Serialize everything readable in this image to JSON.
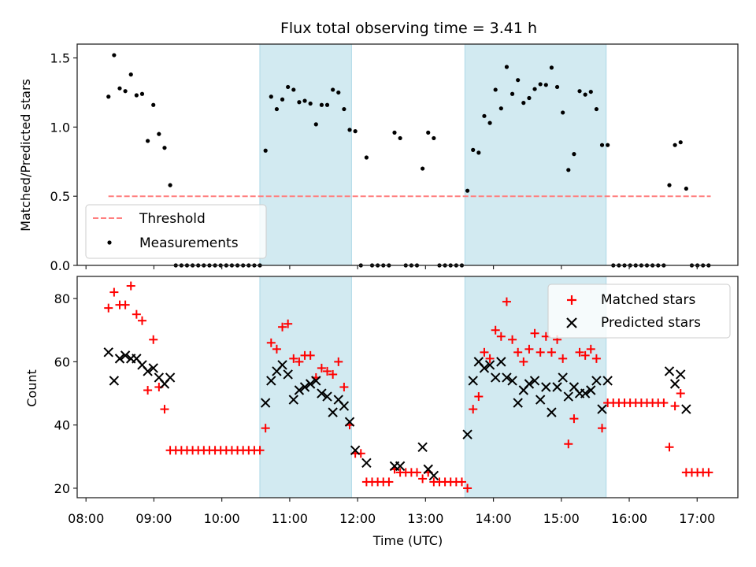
{
  "chart_data": [
    {
      "type": "scatter",
      "panel": "top",
      "title": "Flux total observing time = 3.41 h",
      "xlabel": "",
      "ylabel": "Matched/Predicted stars",
      "ylim": [
        0,
        1.6
      ],
      "yticks": [
        0.0,
        0.5,
        1.0,
        1.5
      ],
      "ytick_labels": [
        "0.0",
        "0.5",
        "1.0",
        "1.5"
      ],
      "threshold": {
        "value": 0.5,
        "x_range_hours": [
          8.33,
          17.2
        ],
        "label": "Threshold",
        "color": "#ff7f7f"
      },
      "legend": {
        "placement": "lower-left",
        "entries": [
          "Threshold",
          "Measurements"
        ]
      },
      "series": [
        {
          "name": "Measurements",
          "marker": "dot",
          "color": "#000000",
          "values": [
            1.22,
            1.52,
            1.28,
            1.26,
            1.38,
            1.23,
            1.24,
            0.9,
            1.16,
            0.95,
            0.85,
            0.58,
            0,
            0,
            0,
            0,
            0,
            0,
            0,
            0,
            0,
            0,
            0,
            0,
            0,
            0,
            0,
            0,
            0.83,
            1.22,
            1.13,
            1.2,
            1.29,
            1.27,
            1.18,
            1.19,
            1.17,
            1.02,
            1.16,
            1.16,
            1.27,
            1.25,
            1.13,
            0.98,
            0.97,
            0,
            0.78,
            0,
            0,
            0,
            0,
            0.96,
            0.92,
            0,
            0,
            0,
            0.7,
            0.96,
            0.92,
            0,
            0,
            0,
            0,
            0,
            0.54,
            0.835,
            0.815,
            1.08,
            1.03,
            1.27,
            1.135,
            1.435,
            1.24,
            1.34,
            1.175,
            1.21,
            1.275,
            1.31,
            1.305,
            1.43,
            1.29,
            1.105,
            0.69,
            0.805,
            1.26,
            1.235,
            1.255,
            1.13,
            0.87,
            0.87,
            0,
            0,
            0,
            0,
            0,
            0,
            0,
            0,
            0,
            0,
            0.58,
            0.87,
            0.89,
            0.555,
            0,
            0,
            0,
            0
          ]
        }
      ]
    },
    {
      "type": "scatter",
      "panel": "bottom",
      "xlabel": "Time (UTC)",
      "ylabel": "Count",
      "ylim": [
        17,
        87
      ],
      "yticks": [
        20,
        40,
        60,
        80
      ],
      "ytick_labels": [
        "20",
        "40",
        "60",
        "80"
      ],
      "legend": {
        "placement": "upper-right",
        "entries": [
          "Matched stars",
          "Predicted stars"
        ]
      },
      "series": [
        {
          "name": "Matched stars",
          "marker": "plus",
          "color": "#ff0000",
          "values": [
            77,
            82,
            78,
            78,
            84,
            75,
            73,
            51,
            67,
            52,
            45,
            32,
            32,
            32,
            32,
            32,
            32,
            32,
            32,
            32,
            32,
            32,
            32,
            32,
            32,
            32,
            32,
            32,
            39,
            66,
            64,
            71,
            72,
            61,
            60,
            62,
            62,
            55,
            58,
            57,
            56,
            60,
            52,
            40,
            31,
            31,
            22,
            22,
            22,
            22,
            22,
            26,
            25,
            25,
            25,
            25,
            23,
            25,
            22,
            22,
            22,
            22,
            22,
            22,
            20,
            45,
            49,
            63,
            61,
            70,
            68,
            79,
            67,
            63,
            60,
            64,
            69,
            63,
            68,
            63,
            67,
            61,
            34,
            42,
            63,
            62,
            64,
            61,
            39,
            47,
            47,
            47,
            47,
            47,
            47,
            47,
            47,
            47,
            47,
            47,
            33,
            46,
            50,
            25,
            25,
            25,
            25,
            25
          ]
        },
        {
          "name": "Predicted stars",
          "marker": "x",
          "color": "#000000",
          "values": [
            63,
            54,
            61,
            62,
            61,
            61,
            59,
            57,
            58,
            55,
            53,
            55,
            null,
            null,
            null,
            null,
            null,
            null,
            null,
            null,
            null,
            null,
            null,
            null,
            null,
            null,
            null,
            null,
            47,
            54,
            57,
            59,
            56,
            48,
            51,
            52,
            53,
            54,
            50,
            49,
            44,
            48,
            46,
            41,
            32,
            null,
            28,
            null,
            null,
            null,
            null,
            27,
            27,
            null,
            null,
            null,
            33,
            26,
            24,
            null,
            null,
            null,
            null,
            null,
            37,
            54,
            60,
            58,
            59,
            55,
            60,
            55,
            54,
            47,
            51,
            53,
            54,
            48,
            52,
            44,
            52,
            55,
            49,
            52,
            50,
            50,
            51,
            54,
            45,
            54,
            null,
            null,
            null,
            null,
            null,
            null,
            null,
            null,
            null,
            null,
            57,
            53,
            56,
            45,
            null,
            null,
            null,
            null
          ]
        }
      ]
    }
  ],
  "shared_x": {
    "unit": "hours UTC",
    "start_hour": 8.331,
    "step_hour": 0.0826,
    "xlim": [
      7.87,
      17.6
    ],
    "xticks": [
      8,
      9,
      10,
      11,
      12,
      13,
      14,
      15,
      16,
      17
    ],
    "xtick_labels": [
      "08:00",
      "09:00",
      "10:00",
      "11:00",
      "12:00",
      "13:00",
      "14:00",
      "15:00",
      "16:00",
      "17:00"
    ],
    "shaded_intervals_hours": [
      [
        10.56,
        11.91
      ],
      [
        13.58,
        15.66
      ]
    ],
    "shade_color": "#add8e6"
  },
  "labels": {
    "title": "Flux total observing time = 3.41 h",
    "top_ylabel": "Matched/Predicted stars",
    "bottom_ylabel": "Count",
    "xlabel": "Time (UTC)",
    "legend_threshold": "Threshold",
    "legend_measurements": "Measurements",
    "legend_matched": "Matched stars",
    "legend_predicted": "Predicted stars"
  }
}
